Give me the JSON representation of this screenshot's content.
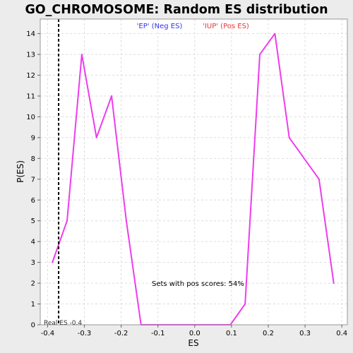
{
  "chart_data": {
    "type": "line",
    "title": "GO_CHROMOSOME: Random ES distribution",
    "xlabel": "ES",
    "ylabel": "P(ES)",
    "xlim": [
      -0.42,
      0.415
    ],
    "ylim": [
      0,
      14.7
    ],
    "grid": true,
    "x_ticks": [
      -0.4,
      -0.3,
      -0.2,
      -0.1,
      0.0,
      0.1,
      0.2,
      0.3,
      0.4
    ],
    "x_tick_labels": [
      "-0.4",
      "-0.3",
      "-0.2",
      "-0.1",
      "0.0",
      "0.1",
      "0.2",
      "0.3",
      "0.4"
    ],
    "y_ticks": [
      0,
      1,
      2,
      3,
      4,
      5,
      6,
      7,
      8,
      9,
      10,
      11,
      12,
      13,
      14
    ],
    "y_tick_labels": [
      "0",
      "1",
      "2",
      "3",
      "4",
      "5",
      "6",
      "7",
      "8",
      "9",
      "10",
      "11",
      "12",
      "13",
      "14"
    ],
    "series": [
      {
        "color": "#ee3cee",
        "x": [
          -0.387,
          -0.347,
          -0.307,
          -0.267,
          -0.226,
          -0.186,
          -0.146,
          0.097,
          0.137,
          0.177,
          0.218,
          0.257,
          0.338,
          0.378
        ],
        "y": [
          3.0,
          5.0,
          13.0,
          9.0,
          11.0,
          5.0,
          0.0,
          0.0,
          1.0,
          13.0,
          14.0,
          9.0,
          7.0,
          2.0
        ]
      }
    ],
    "real_es": {
      "x": -0.37,
      "label": "Real ES -0.4"
    },
    "legend": [
      {
        "text": "'EP' (Neg ES)",
        "color": "#3333ee"
      },
      {
        "text": "'IUP' (Pos ES)",
        "color": "#ee3333"
      }
    ],
    "annotation": "Sets with pos scores: 54%"
  }
}
